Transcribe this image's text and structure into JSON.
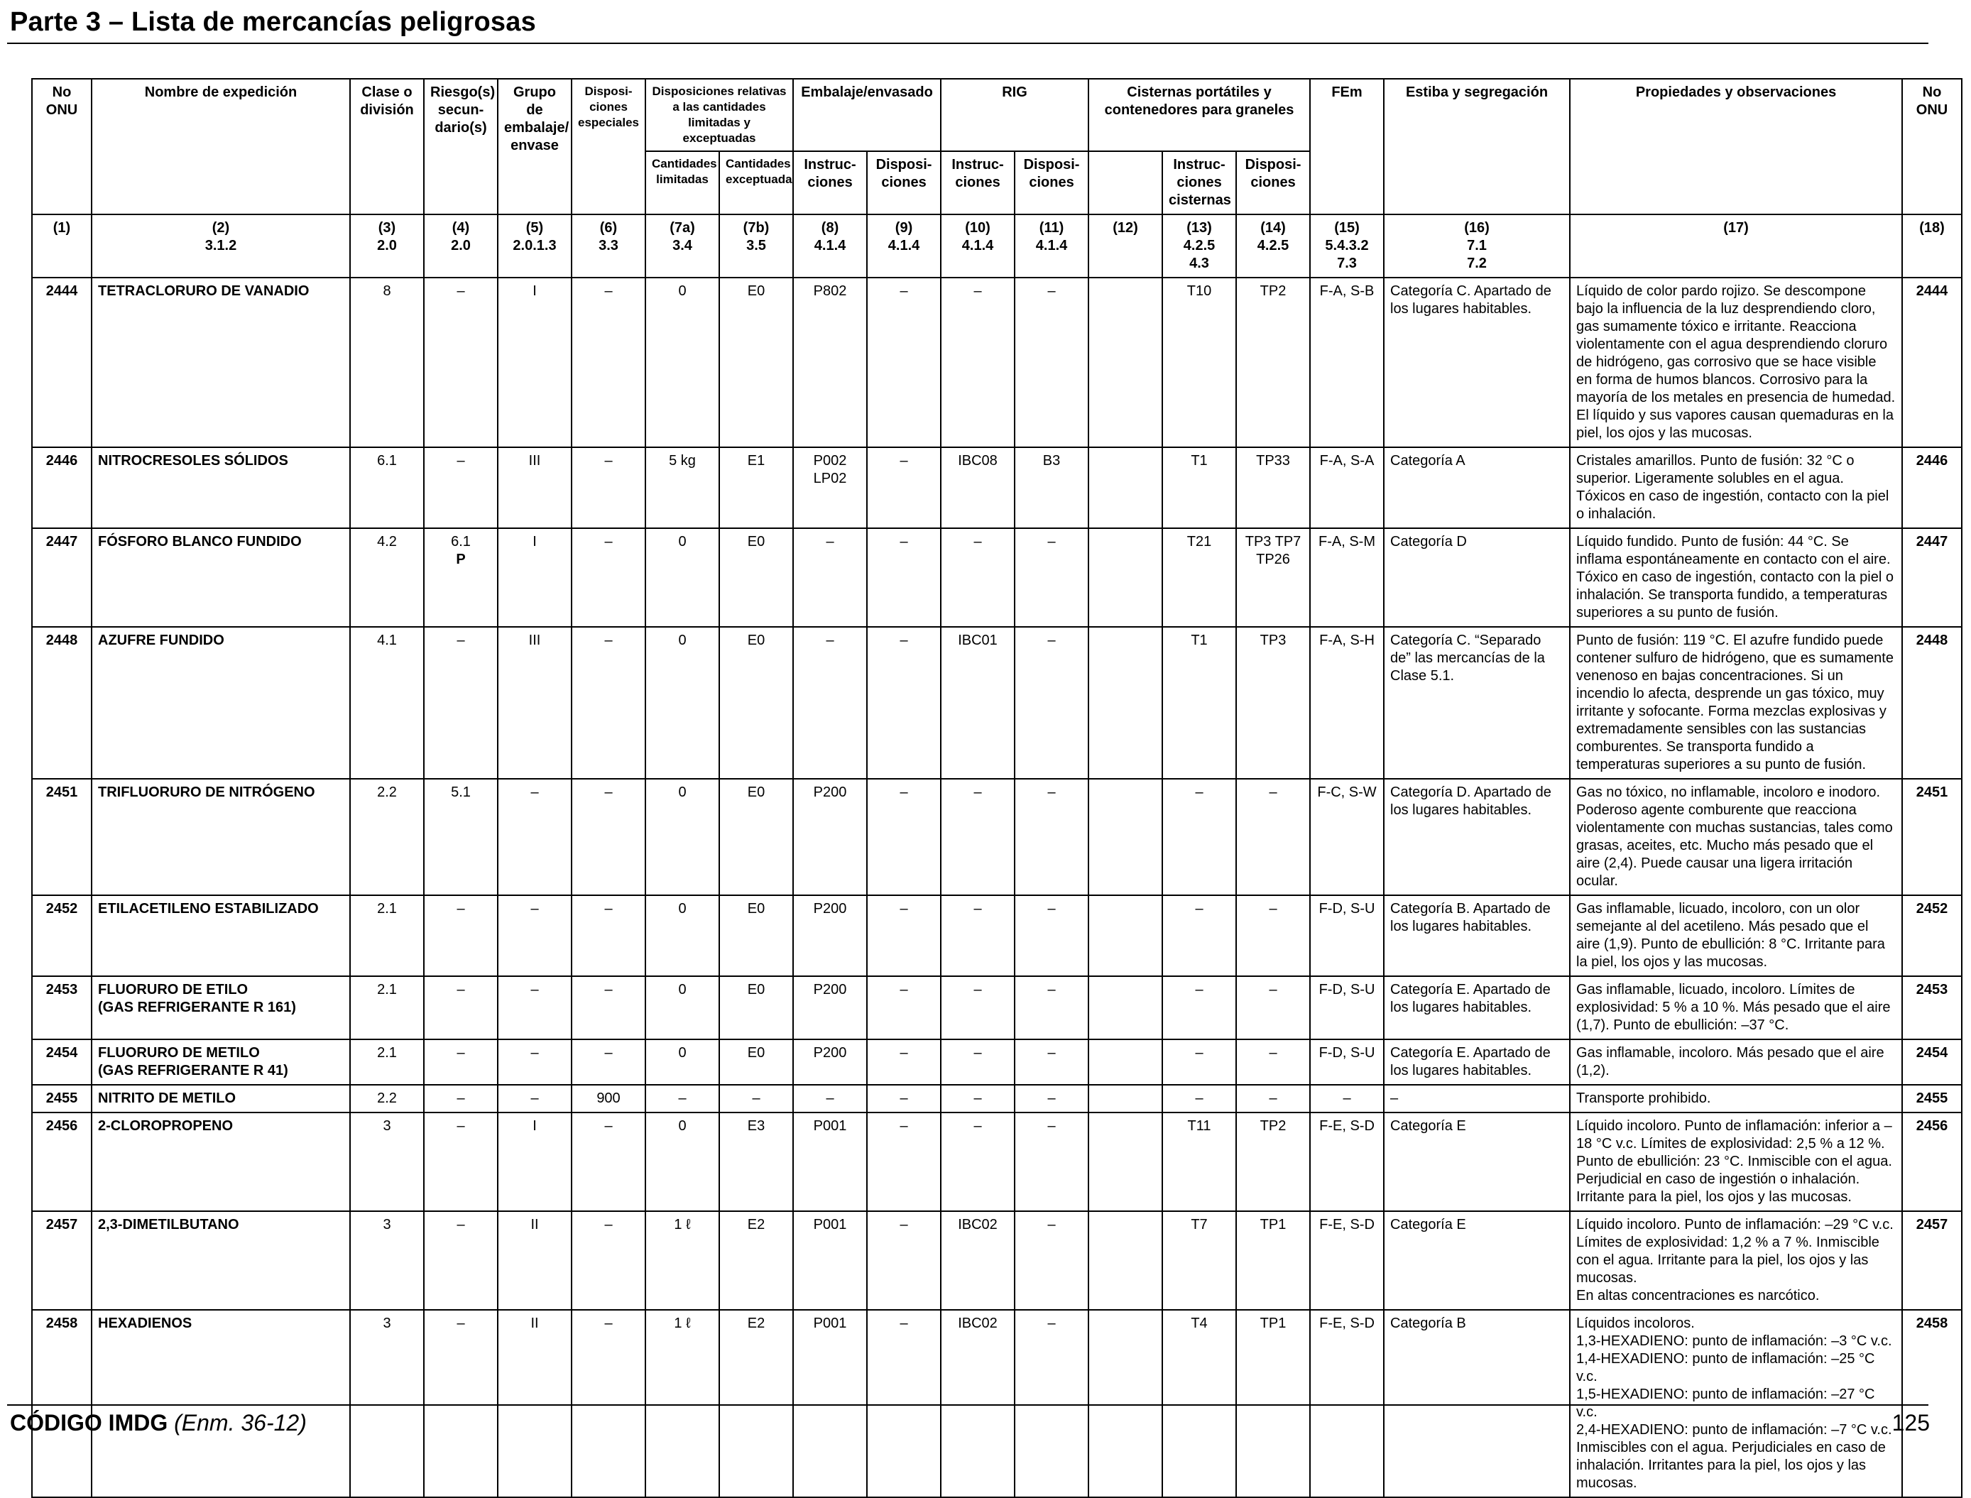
{
  "page_title": "Parte 3 – Lista de mercancías peligrosas",
  "headers": {
    "un_no": "No ONU",
    "name": "Nombre de expedición",
    "class": "Clase o división",
    "subsidiary": "Riesgo(s) secun-dario(s)",
    "packing_group": "Grupo de embalaje/ envase",
    "special_provisions": "Disposi-ciones especiales",
    "limited_excepted": "Disposiciones relativas a las cantidades limitadas y exceptuadas",
    "limited_qty": "Cantidades limitadas",
    "excepted_qty": "Cantidades exceptuadas",
    "packing": "Embalaje/envasado",
    "packing_instr": "Instruc-ciones",
    "packing_prov": "Disposi-ciones",
    "ibc": "RIG",
    "ibc_instr": "Instruc-ciones",
    "ibc_prov": "Disposi-ciones",
    "tanks": "Cisternas portátiles y contenedores para graneles",
    "tank_instr": "Instruc-ciones cisternas",
    "tank_prov": "Disposi-ciones",
    "ems": "FEm",
    "stowage": "Estiba y segregación",
    "properties": "Propiedades y observaciones",
    "un_no_right": "No ONU"
  },
  "column_refs": [
    [
      "(1)"
    ],
    [
      "(2)",
      "3.1.2"
    ],
    [
      "(3)",
      "2.0"
    ],
    [
      "(4)",
      "2.0"
    ],
    [
      "(5)",
      "2.0.1.3"
    ],
    [
      "(6)",
      "3.3"
    ],
    [
      "(7a)",
      "3.4"
    ],
    [
      "(7b)",
      "3.5"
    ],
    [
      "(8)",
      "4.1.4"
    ],
    [
      "(9)",
      "4.1.4"
    ],
    [
      "(10)",
      "4.1.4"
    ],
    [
      "(11)",
      "4.1.4"
    ],
    [
      "(12)"
    ],
    [
      "(13)",
      "4.2.5",
      "4.3"
    ],
    [
      "(14)",
      "4.2.5"
    ],
    [
      "(15)",
      "5.4.3.2",
      "7.3"
    ],
    [
      "(16)",
      "7.1",
      "7.2"
    ],
    [
      "(17)"
    ],
    [
      "(18)"
    ]
  ],
  "rows": [
    {
      "un": "2444",
      "name": "TETRACLORURO DE VANADIO",
      "class": "8",
      "sub": "–",
      "pg": "I",
      "sp": "–",
      "lq": "0",
      "eq": "E0",
      "pi": "P802",
      "pp": "–",
      "ibc": "–",
      "ibcp": "–",
      "c12": "",
      "ti": "T10",
      "tp": "TP2",
      "ems": "F-A, S-B",
      "stow": "Categoría C. Apartado de los lugares habitables.",
      "props": "Líquido de color pardo rojizo. Se descompone bajo la influencia de la luz desprendiendo cloro, gas sumamente tóxico e irritante. Reacciona violentamente con el agua desprendiendo cloruro de hidrógeno, gas corrosivo que se hace visible en forma de humos blancos. Corrosivo para la mayoría de los metales en presencia de humedad. El líquido y sus vapores causan quemaduras en la piel, los ojos y las mucosas."
    },
    {
      "un": "2446",
      "name": "NITROCRESOLES SÓLIDOS",
      "class": "6.1",
      "sub": "–",
      "pg": "III",
      "sp": "–",
      "lq": "5 kg",
      "eq": "E1",
      "pi": "P002 LP02",
      "pp": "–",
      "ibc": "IBC08",
      "ibcp": "B3",
      "c12": "",
      "ti": "T1",
      "tp": "TP33",
      "ems": "F-A, S-A",
      "stow": "Categoría A",
      "props": "Cristales amarillos. Punto de fusión: 32 °C o superior. Ligeramente solubles en el agua. Tóxicos en caso de ingestión, contacto con la piel o inhalación."
    },
    {
      "un": "2447",
      "name": "FÓSFORO BLANCO FUNDIDO",
      "class": "4.2",
      "sub": "6.1",
      "sub2": "P",
      "pg": "I",
      "sp": "–",
      "lq": "0",
      "eq": "E0",
      "pi": "–",
      "pp": "–",
      "ibc": "–",
      "ibcp": "–",
      "c12": "",
      "ti": "T21",
      "tp": "TP3 TP7 TP26",
      "ems": "F-A, S-M",
      "stow": "Categoría D",
      "props": "Líquido fundido. Punto de fusión: 44 °C. Se inflama espontáneamente en contacto con el aire. Tóxico en caso de ingestión, contacto con la piel o inhalación. Se transporta fundido, a temperaturas superiores a su punto de fusión."
    },
    {
      "un": "2448",
      "name": "AZUFRE FUNDIDO",
      "class": "4.1",
      "sub": "–",
      "pg": "III",
      "sp": "–",
      "lq": "0",
      "eq": "E0",
      "pi": "–",
      "pp": "–",
      "ibc": "IBC01",
      "ibcp": "–",
      "c12": "",
      "ti": "T1",
      "tp": "TP3",
      "ems": "F-A, S-H",
      "stow": "Categoría C. “Separado de” las mercancías de la Clase 5.1.",
      "props": "Punto de fusión: 119 °C. El azufre fundido puede contener sulfuro de hidrógeno, que es sumamente venenoso en bajas concentraciones. Si un incendio lo afecta, desprende un gas tóxico, muy irritante y sofocante. Forma mezclas explosivas y extremadamente sensibles con las sustancias comburentes. Se transporta fundido a temperaturas superiores a su punto de fusión."
    },
    {
      "un": "2451",
      "name": "TRIFLUORURO DE NITRÓGENO",
      "class": "2.2",
      "sub": "5.1",
      "pg": "–",
      "sp": "–",
      "lq": "0",
      "eq": "E0",
      "pi": "P200",
      "pp": "–",
      "ibc": "–",
      "ibcp": "–",
      "c12": "",
      "ti": "–",
      "tp": "–",
      "ems": "F-C, S-W",
      "stow": "Categoría D. Apartado de los lugares habitables.",
      "props": "Gas no tóxico, no inflamable, incoloro e inodoro. Poderoso agente comburente que reacciona violentamente con muchas sustancias, tales como grasas, aceites, etc. Mucho más pesado que el aire (2,4). Puede causar una ligera irritación ocular."
    },
    {
      "un": "2452",
      "name": "ETILACETILENO ESTABILIZADO",
      "class": "2.1",
      "sub": "–",
      "pg": "–",
      "sp": "–",
      "lq": "0",
      "eq": "E0",
      "pi": "P200",
      "pp": "–",
      "ibc": "–",
      "ibcp": "–",
      "c12": "",
      "ti": "–",
      "tp": "–",
      "ems": "F-D, S-U",
      "stow": "Categoría B. Apartado de los lugares habitables.",
      "props": "Gas inflamable, licuado, incoloro, con un olor semejante al del acetileno. Más pesado que el aire (1,9). Punto de ebullición: 8 °C. Irritante para la piel, los ojos y las mucosas."
    },
    {
      "un": "2453",
      "name": "FLUORURO DE ETILO",
      "name2": "(GAS REFRIGERANTE R 161)",
      "class": "2.1",
      "sub": "–",
      "pg": "–",
      "sp": "–",
      "lq": "0",
      "eq": "E0",
      "pi": "P200",
      "pp": "–",
      "ibc": "–",
      "ibcp": "–",
      "c12": "",
      "ti": "–",
      "tp": "–",
      "ems": "F-D, S-U",
      "stow": "Categoría E. Apartado de los lugares habitables.",
      "props": "Gas inflamable, licuado, incoloro. Límites de explosividad: 5 % a 10 %. Más pesado que el aire (1,7). Punto de ebullición: –37 °C."
    },
    {
      "un": "2454",
      "name": "FLUORURO DE METILO",
      "name2": "(GAS REFRIGERANTE R 41)",
      "class": "2.1",
      "sub": "–",
      "pg": "–",
      "sp": "–",
      "lq": "0",
      "eq": "E0",
      "pi": "P200",
      "pp": "–",
      "ibc": "–",
      "ibcp": "–",
      "c12": "",
      "ti": "–",
      "tp": "–",
      "ems": "F-D, S-U",
      "stow": "Categoría E. Apartado de los lugares habitables.",
      "props": "Gas inflamable, incoloro. Más pesado que el aire (1,2)."
    },
    {
      "un": "2455",
      "name": "NITRITO DE METILO",
      "class": "2.2",
      "sub": "–",
      "pg": "–",
      "sp": "900",
      "lq": "–",
      "eq": "–",
      "pi": "–",
      "pp": "–",
      "ibc": "–",
      "ibcp": "–",
      "c12": "",
      "ti": "–",
      "tp": "–",
      "ems": "–",
      "stow": "–",
      "props": "Transporte prohibido."
    },
    {
      "un": "2456",
      "name": "2-CLOROPROPENO",
      "class": "3",
      "sub": "–",
      "pg": "I",
      "sp": "–",
      "lq": "0",
      "eq": "E3",
      "pi": "P001",
      "pp": "–",
      "ibc": "–",
      "ibcp": "–",
      "c12": "",
      "ti": "T11",
      "tp": "TP2",
      "ems": "F-E, S-D",
      "stow": "Categoría E",
      "props": "Líquido incoloro. Punto de inflamación: inferior a –18 °C v.c. Límites de explosividad: 2,5 % a 12 %. Punto de ebullición: 23 °C. Inmiscible con el agua. Perjudicial en caso de ingestión o inhalación. Irritante para la piel, los ojos y las mucosas."
    },
    {
      "un": "2457",
      "name": "2,3-DIMETILBUTANO",
      "class": "3",
      "sub": "–",
      "pg": "II",
      "sp": "–",
      "lq": "1 ℓ",
      "eq": "E2",
      "pi": "P001",
      "pp": "–",
      "ibc": "IBC02",
      "ibcp": "–",
      "c12": "",
      "ti": "T7",
      "tp": "TP1",
      "ems": "F-E, S-D",
      "stow": "Categoría E",
      "props": "Líquido incoloro. Punto de inflamación: –29 °C v.c. Límites de explosividad: 1,2 % a 7 %. Inmiscible con el agua. Irritante para la piel, los ojos y las mucosas.",
      "props2": "En altas concentraciones es narcótico."
    },
    {
      "un": "2458",
      "name": "HEXADIENOS",
      "class": "3",
      "sub": "–",
      "pg": "II",
      "sp": "–",
      "lq": "1 ℓ",
      "eq": "E2",
      "pi": "P001",
      "pp": "–",
      "ibc": "IBC02",
      "ibcp": "–",
      "c12": "",
      "ti": "T4",
      "tp": "TP1",
      "ems": "F-E, S-D",
      "stow": "Categoría B",
      "props": "Líquidos incoloros.",
      "props_lines": [
        "1,3-HEXADIENO: punto de inflamación: –3 °C v.c.",
        "1,4-HEXADIENO: punto de inflamación: –25 °C v.c.",
        "1,5-HEXADIENO: punto de inflamación: –27 °C v.c.",
        "2,4-HEXADIENO: punto de inflamación: –7 °C v.c.",
        "Inmiscibles con el agua. Perjudiciales en caso de inhalación. Irritantes para la piel, los ojos y las mucosas."
      ]
    }
  ],
  "footer": {
    "code": "CÓDIGO IMDG",
    "amendment": "(Enm. 36-12)",
    "page_number": "125"
  }
}
